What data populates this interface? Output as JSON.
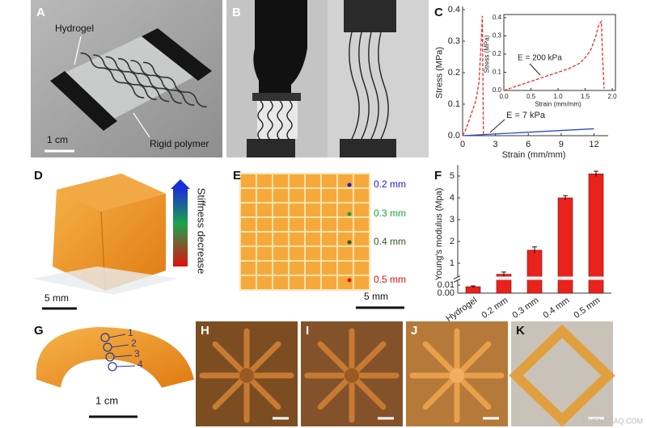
{
  "figure": {
    "labels": [
      "A",
      "B",
      "C",
      "D",
      "E",
      "F",
      "G",
      "H",
      "I",
      "J",
      "K"
    ]
  },
  "panel_a": {
    "hydrogel": "Hydrogel",
    "rigid": "Rigid polymer",
    "scale": "1 cm"
  },
  "panel_d": {
    "legend": "Stiffness decrease",
    "scale": "5 mm"
  },
  "panel_e": {
    "sizes": [
      {
        "label": "0.2 mm",
        "color": "#1a1ad6"
      },
      {
        "label": "0.3 mm",
        "color": "#1aa33a"
      },
      {
        "label": "0.4 mm",
        "color": "#2e5a22"
      },
      {
        "label": "0.5 mm",
        "color": "#e01010"
      }
    ],
    "scale": "5 mm"
  },
  "panel_g": {
    "markers": [
      "1",
      "2",
      "3",
      "4"
    ],
    "scale": "1 cm"
  },
  "watermark": "SCIENCEAQ.COM",
  "chart_data": [
    {
      "type": "line",
      "xlabel": "Strain (mm/mm)",
      "ylabel": "Stress (MPa)",
      "xlim": [
        0,
        13
      ],
      "ylim": [
        0,
        0.4
      ],
      "xticks": [
        0,
        3,
        6,
        9,
        12
      ],
      "yticks": [
        {
          "value": 0,
          "label": "0.0"
        },
        0.1,
        0.2,
        0.3,
        0.4
      ],
      "series": [
        {
          "color": "#e8312a",
          "dashed": true,
          "x": [
            0,
            0.3,
            0.6,
            0.9,
            1.2,
            1.5,
            1.7,
            1.8,
            1.85,
            1.9
          ],
          "values": [
            0,
            0.02,
            0.05,
            0.08,
            0.11,
            0.17,
            0.3,
            0.38,
            0.2,
            0
          ]
        },
        {
          "color": "#2b4bd1",
          "dashed": false,
          "x": [
            0,
            12
          ],
          "values": [
            0,
            0.022
          ]
        }
      ],
      "annotation": "E = 7 kPa",
      "inset": {
        "xlabel": "Strain (mm/mm)",
        "ylabel": "Stress (MPa)",
        "xlim": [
          0,
          2
        ],
        "ylim": [
          0,
          0.4
        ],
        "xticks": [
          {
            "value": 0,
            "label": "0.0"
          },
          0.5,
          {
            "value": 1,
            "label": "1.0"
          },
          1.5,
          {
            "value": 2,
            "label": "2.0"
          }
        ],
        "yticks": [
          {
            "value": 0,
            "label": "0.0"
          },
          0.1,
          0.2,
          0.3,
          0.4
        ],
        "series": [
          {
            "color": "#e8312a",
            "dashed": true,
            "x": [
              0,
              0.1,
              0.2,
              0.4,
              0.6,
              0.8,
              1.0,
              1.2,
              1.4,
              1.5,
              1.6,
              1.7,
              1.75,
              1.8,
              1.82,
              1.85
            ],
            "values": [
              0,
              0.01,
              0.02,
              0.04,
              0.06,
              0.08,
              0.1,
              0.12,
              0.15,
              0.18,
              0.22,
              0.3,
              0.36,
              0.38,
              0.2,
              0.01
            ]
          }
        ],
        "annotation": "E = 200 kPa"
      }
    },
    {
      "type": "bar",
      "ylabel": "Young's modulus (Mpa)",
      "categories": [
        "Hydrogel",
        "0.2 mm",
        "0.3 mm",
        "0.4 mm",
        "0.5 mm"
      ],
      "values": [
        0.008,
        0.5,
        1.6,
        4.0,
        5.1
      ],
      "errors": [
        0.001,
        0.1,
        0.15,
        0.1,
        0.12
      ],
      "color": "#e8231c",
      "ylim": [
        0,
        5.5
      ],
      "yticks": [
        {
          "value": 0,
          "label": "0.00"
        },
        0.01,
        1,
        2,
        3,
        4,
        5
      ],
      "axis_break": true
    }
  ]
}
